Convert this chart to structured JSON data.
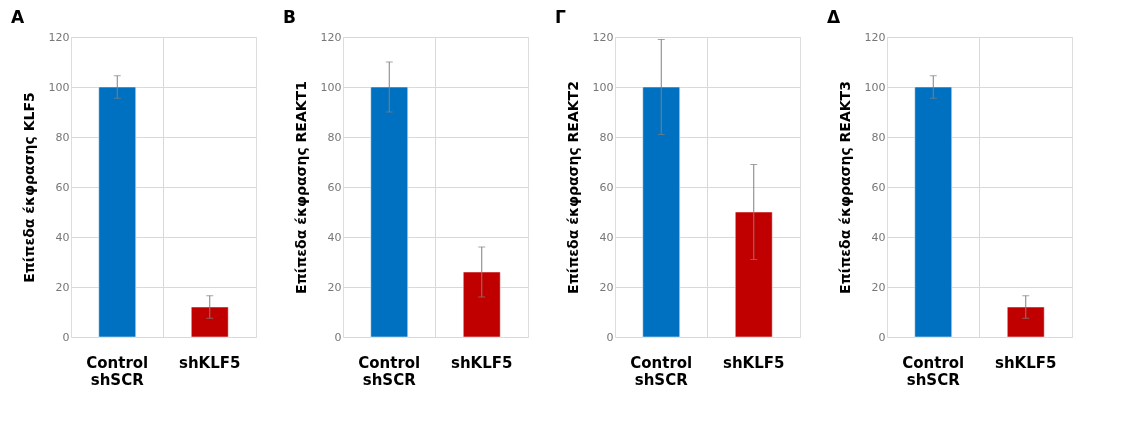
{
  "chart_data": [
    {
      "type": "bar",
      "title": "A",
      "ylabel": "Επίπεδα έκφρασης KLF5",
      "categories": [
        "Control\nshSCR",
        "shKLF5"
      ],
      "values": [
        100,
        12
      ],
      "colors": [
        "#0070c0",
        "#c00000"
      ],
      "errors": [
        4.5,
        4.5
      ],
      "ylim": [
        0,
        120
      ],
      "yticks": [
        0,
        20,
        40,
        60,
        80,
        100,
        120
      ],
      "grid": true
    },
    {
      "type": "bar",
      "title": "B",
      "ylabel": "Επίπεδα έκφρασης REAKT1",
      "categories": [
        "Control\nshSCR",
        "shKLF5"
      ],
      "values": [
        100,
        26
      ],
      "colors": [
        "#0070c0",
        "#c00000"
      ],
      "errors": [
        10,
        10
      ],
      "ylim": [
        0,
        120
      ],
      "yticks": [
        0,
        20,
        40,
        60,
        80,
        100,
        120
      ],
      "grid": true
    },
    {
      "type": "bar",
      "title": "Γ",
      "ylabel": "Επίπεδα έκφρασης REAKT2",
      "categories": [
        "Control\nshSCR",
        "shKLF5"
      ],
      "values": [
        100,
        50
      ],
      "colors": [
        "#0070c0",
        "#c00000"
      ],
      "errors": [
        19,
        19
      ],
      "ylim": [
        0,
        120
      ],
      "yticks": [
        0,
        20,
        40,
        60,
        80,
        100,
        120
      ],
      "grid": true
    },
    {
      "type": "bar",
      "title": "Δ",
      "ylabel": "Επίπεδα έκφρασης REAKT3",
      "categories": [
        "Control\nshSCR",
        "shKLF5"
      ],
      "values": [
        100,
        12
      ],
      "colors": [
        "#0070c0",
        "#c00000"
      ],
      "errors": [
        4.5,
        4.5
      ],
      "ylim": [
        0,
        120
      ],
      "yticks": [
        0,
        20,
        40,
        60,
        80,
        100,
        120
      ],
      "grid": true
    }
  ]
}
